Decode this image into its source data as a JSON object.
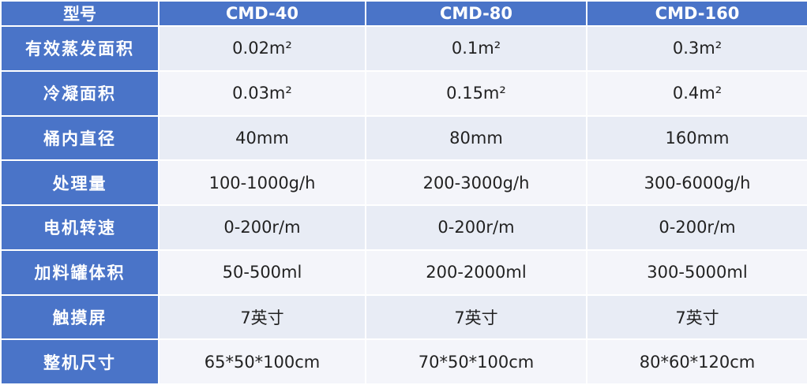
{
  "table": {
    "header": [
      "型号",
      "CMD-40",
      "CMD-80",
      "CMD-160"
    ],
    "rows": [
      [
        "有效蒸发面积",
        "0.02m²",
        "0.1m²",
        "0.3m²"
      ],
      [
        "冷凝面积",
        "0.03m²",
        "0.15m²",
        "0.4m²"
      ],
      [
        "桶内直径",
        "40mm",
        "80mm",
        "160mm"
      ],
      [
        "处理量",
        "100-1000g/h",
        "200-3000g/h",
        "300-6000g/h"
      ],
      [
        "电机转速",
        "0-200r/m",
        "0-200r/m",
        "0-200r/m"
      ],
      [
        "加料罐体积",
        "50-500ml",
        "200-2000ml",
        "300-5000ml"
      ],
      [
        "触摸屏",
        "7英寸",
        "7英寸",
        "7英寸"
      ],
      [
        "整机尺寸",
        "65*50*100cm",
        "70*50*100cm",
        "80*60*120cm"
      ]
    ]
  }
}
